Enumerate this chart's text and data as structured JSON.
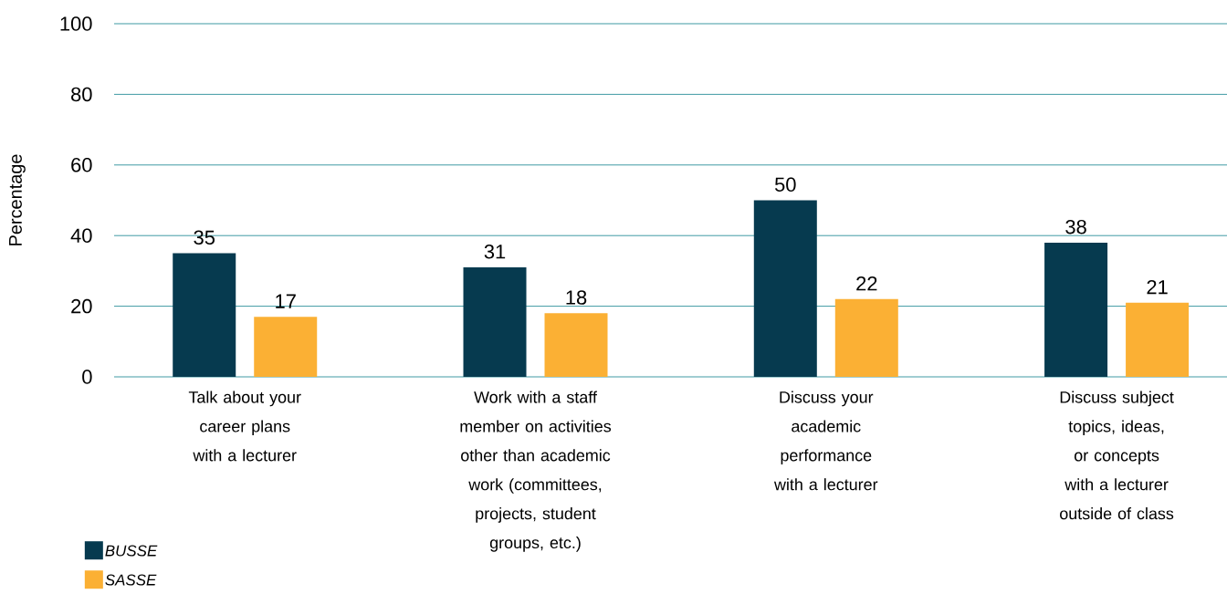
{
  "chart_data": {
    "type": "bar",
    "ylabel": "Percentage",
    "categories": [
      "Talk about your career plans with a lecturer",
      "Work with a staff member on activities other than academic work (committees, projects, student groups, etc.)",
      "Discuss your academic performance with a lecturer",
      "Discuss subject topics, ideas, or concepts with a lecturer outside of class"
    ],
    "series": [
      {
        "name": "BUSSE",
        "color": "#063a4f",
        "values": [
          35,
          31,
          50,
          38
        ]
      },
      {
        "name": "SASSE",
        "color": "#fbb034",
        "values": [
          17,
          18,
          22,
          21
        ]
      }
    ],
    "ylim": [
      0,
      100
    ],
    "yticks": [
      0,
      20,
      40,
      60,
      80,
      100
    ],
    "grid": "y",
    "legend": "bottom left",
    "data_labels": true
  }
}
